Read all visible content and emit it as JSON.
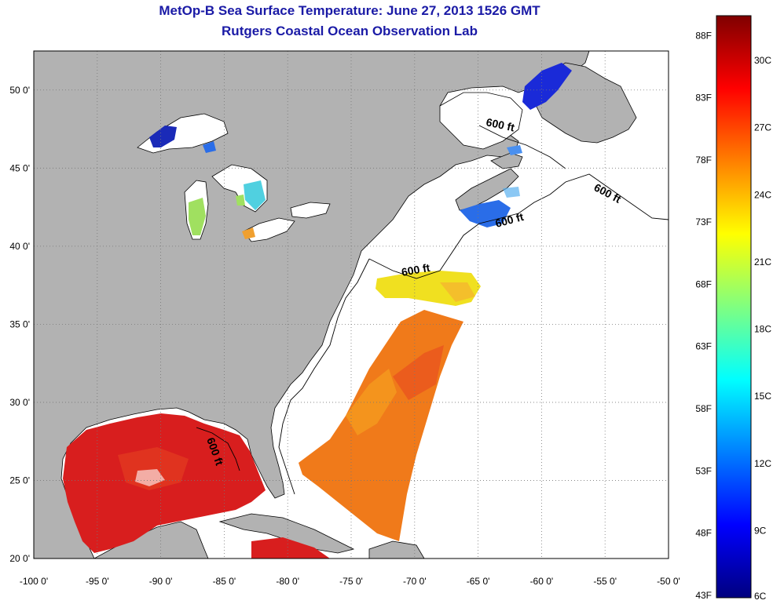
{
  "title": {
    "line1": "MetOp-B Sea Surface Temperature:  June 27, 2013 1526 GMT",
    "line2": "Rutgers Coastal Ocean Observation Lab"
  },
  "axes": {
    "lon_ticks": [
      "-100 0'",
      "-95 0'",
      "-90 0'",
      "-85 0'",
      "-80 0'",
      "-75 0'",
      "-70 0'",
      "-65 0'",
      "-60 0'",
      "-55 0'",
      "-50 0'"
    ],
    "lat_ticks": [
      "50 0'",
      "45 0'",
      "40 0'",
      "35 0'",
      "30 0'",
      "25 0'",
      "20 0'"
    ],
    "lon_range": [
      -100,
      -50
    ],
    "lat_range": [
      20,
      52.5
    ]
  },
  "contour_labels": [
    "600 ft",
    "600 ft",
    "600 ft",
    "600 ft",
    "600 ft"
  ],
  "colorbar": {
    "fahrenheit": [
      "88F",
      "83F",
      "78F",
      "73F",
      "68F",
      "63F",
      "58F",
      "53F",
      "48F",
      "43F"
    ],
    "celsius": [
      "30C",
      "27C",
      "24C",
      "21C",
      "18C",
      "15C",
      "12C",
      "9C",
      "6C"
    ],
    "min_c": 6,
    "max_c": 32
  },
  "colors": {
    "land": "#b2b2b2",
    "title": "#1a1aa6"
  }
}
